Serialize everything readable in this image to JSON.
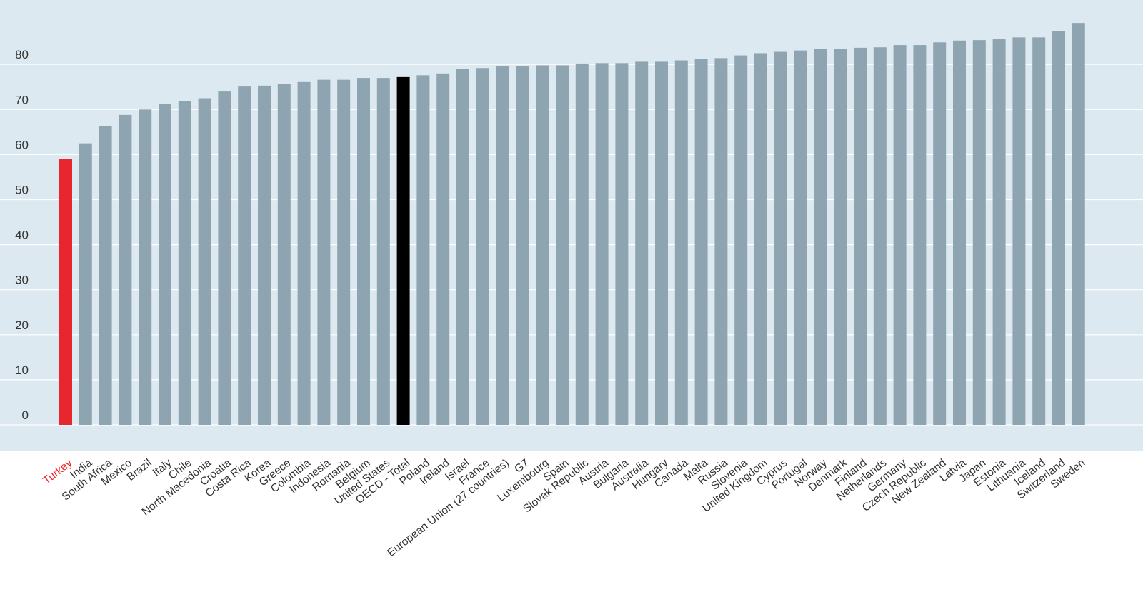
{
  "chart_data": {
    "type": "bar",
    "title": "",
    "xlabel": "",
    "ylabel": "",
    "ylim": [
      0,
      90
    ],
    "yticks": [
      0,
      10,
      20,
      30,
      40,
      50,
      60,
      70,
      80
    ],
    "grid": true,
    "categories": [
      "Turkey",
      "India",
      "South Africa",
      "Mexico",
      "Brazil",
      "Italy",
      "Chile",
      "North Macedonia",
      "Croatia",
      "Costa Rica",
      "Korea",
      "Greece",
      "Colombia",
      "Indonesia",
      "Romania",
      "Belgium",
      "United States",
      "OECD - Total",
      "Poland",
      "Ireland",
      "Israel",
      "France",
      "European Union (27 countries)",
      "G7",
      "Luxembourg",
      "Spain",
      "Slovak Republic",
      "Austria",
      "Bulgaria",
      "Australia",
      "Hungary",
      "Canada",
      "Malta",
      "Russia",
      "Slovenia",
      "United Kingdom",
      "Cyprus",
      "Portugal",
      "Norway",
      "Denmark",
      "Finland",
      "Netherlands",
      "Germany",
      "Czech Republic",
      "New Zealand",
      "Latvia",
      "Japan",
      "Estonia",
      "Lithuania",
      "Iceland",
      "Switzerland",
      "Sweden"
    ],
    "values": [
      59,
      62.5,
      66.3,
      68.8,
      70,
      71.2,
      71.8,
      72.5,
      74,
      75.1,
      75.3,
      75.6,
      76.1,
      76.6,
      76.6,
      77,
      77,
      77.2,
      77.6,
      78,
      79,
      79.2,
      79.6,
      79.6,
      79.8,
      79.8,
      80.2,
      80.3,
      80.3,
      80.6,
      80.6,
      80.9,
      81.3,
      81.4,
      82,
      82.5,
      82.8,
      83.1,
      83.4,
      83.4,
      83.7,
      83.8,
      84.3,
      84.3,
      84.9,
      85.3,
      85.4,
      85.7,
      86,
      86,
      87.4,
      89.2
    ],
    "colors": {
      "background_band": "#dde9f1",
      "gridline": "#ffffff",
      "default_bar": "#8fa4b1",
      "highlight_bar": "#e8262d",
      "oecd_bar": "#000000",
      "axis_text": "#333333",
      "highlight_label": "#e8262d"
    },
    "highlight": {
      "Turkey": "highlight",
      "OECD - Total": "oecd"
    }
  }
}
